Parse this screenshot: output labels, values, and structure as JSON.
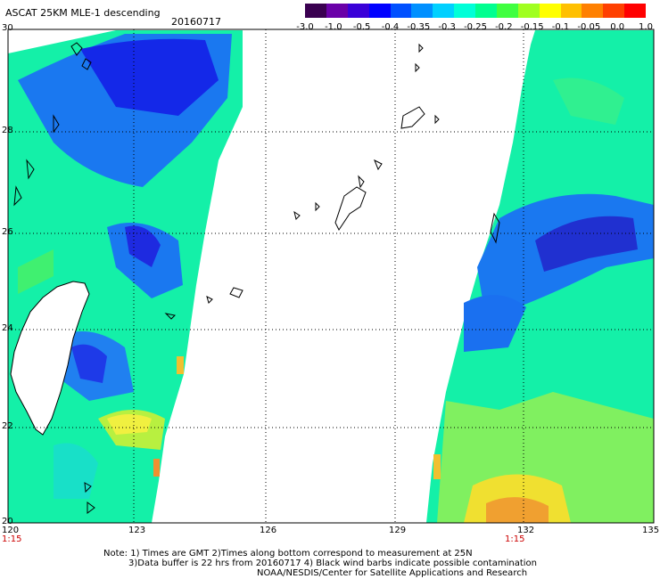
{
  "title": "ASCAT 25KM MLE-1 descending",
  "date": "20160717",
  "colorbar": {
    "labels": [
      "-3.0",
      "-1.0",
      "-0.5",
      "-0.4",
      "-0.35",
      "-0.3",
      "-0.25",
      "-0.2",
      "-0.15",
      "-0.1",
      "-0.05",
      "0.0",
      "1.0"
    ],
    "colors": [
      "#3a0050",
      "#6a00a8",
      "#3a00d8",
      "#0000ff",
      "#0050ff",
      "#0090ff",
      "#00d0ff",
      "#00ffd8",
      "#00ff90",
      "#40ff40",
      "#a0ff20",
      "#ffff00",
      "#ffc000",
      "#ff8000",
      "#ff4000",
      "#ff0000"
    ]
  },
  "axes": {
    "y_ticks": [
      "30",
      "28",
      "26",
      "24",
      "22",
      "20"
    ],
    "x_ticks": [
      "120",
      "123",
      "126",
      "129",
      "132",
      "135"
    ],
    "time_labels": [
      {
        "label": "1:15",
        "lon": 120
      },
      {
        "label": "1:15",
        "lon": 132
      }
    ]
  },
  "notes": [
    "Note: 1) Times are GMT 2)Times along bottom correspond to measurement at 25N",
    "3)Data buffer is 22 hrs from 20160717 4) Black wind barbs indicate possible contamination",
    "NOAA/NESDIS/Center for Satellite Applications and Research"
  ]
}
